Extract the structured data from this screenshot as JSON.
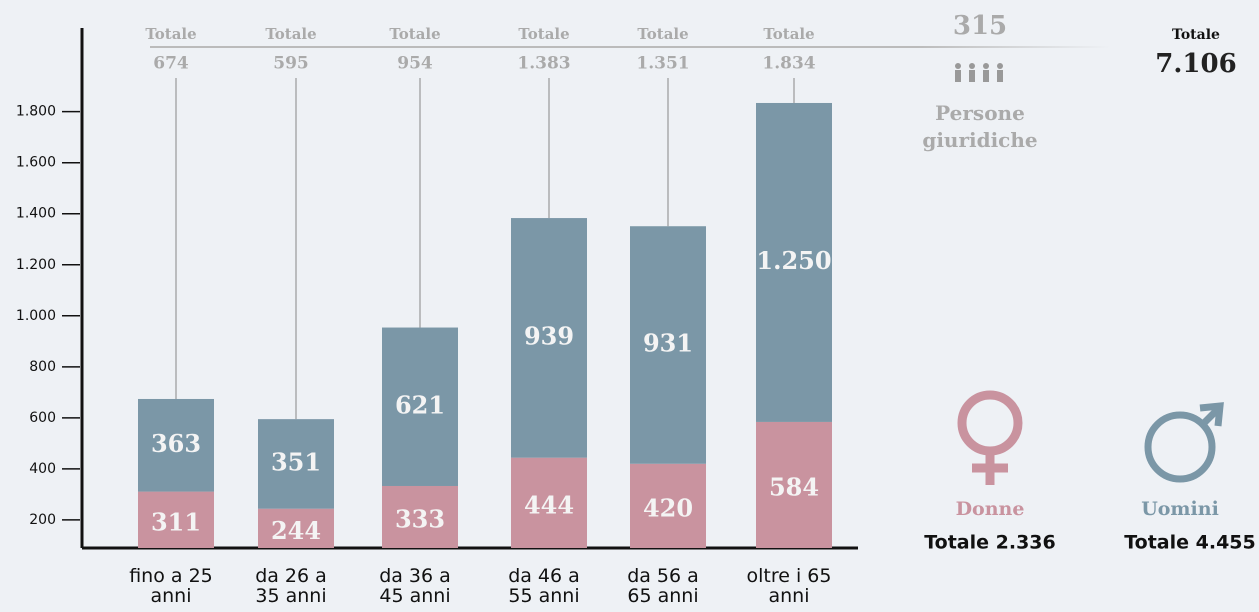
{
  "chart_data": {
    "type": "stacked_bar",
    "categories": [
      "fino a 25 anni",
      "da 26 a 35 anni",
      "da 36 a 45 anni",
      "da 46 a 55 anni",
      "da 56 a 65 anni",
      "oltre i 65 anni"
    ],
    "series": [
      {
        "name": "Donne",
        "color": "#c9939f",
        "values": [
          311,
          244,
          333,
          444,
          420,
          584
        ],
        "value_labels": [
          "311",
          "244",
          "333",
          "444",
          "420",
          "584"
        ],
        "total_label": "Totale 2.336"
      },
      {
        "name": "Uomini",
        "color": "#7b97a7",
        "values": [
          363,
          351,
          621,
          939,
          931,
          1250
        ],
        "value_labels": [
          "363",
          "351",
          "621",
          "939",
          "931",
          "1.250"
        ],
        "total_label": "Totale 4.455"
      }
    ],
    "totals": {
      "heading": "Totale",
      "values": [
        674,
        595,
        954,
        1383,
        1351,
        1834
      ],
      "value_labels": [
        "674",
        "595",
        "954",
        "1.383",
        "1.351",
        "1.834"
      ]
    },
    "ylim": [
      90,
      2120
    ],
    "yticks": [
      200,
      400,
      600,
      800,
      {
        "value": 1000,
        "label": "1.000"
      },
      {
        "value": 1200,
        "label": "1.200"
      },
      {
        "value": 1400,
        "label": "1.400"
      },
      {
        "value": 1600,
        "label": "1.600"
      },
      {
        "value": 1800,
        "label": "1.800"
      }
    ],
    "legal_persons": {
      "value": 315,
      "label": "Persone giuridiche"
    },
    "grand_total": {
      "heading": "Totale",
      "label": "7.106"
    }
  }
}
